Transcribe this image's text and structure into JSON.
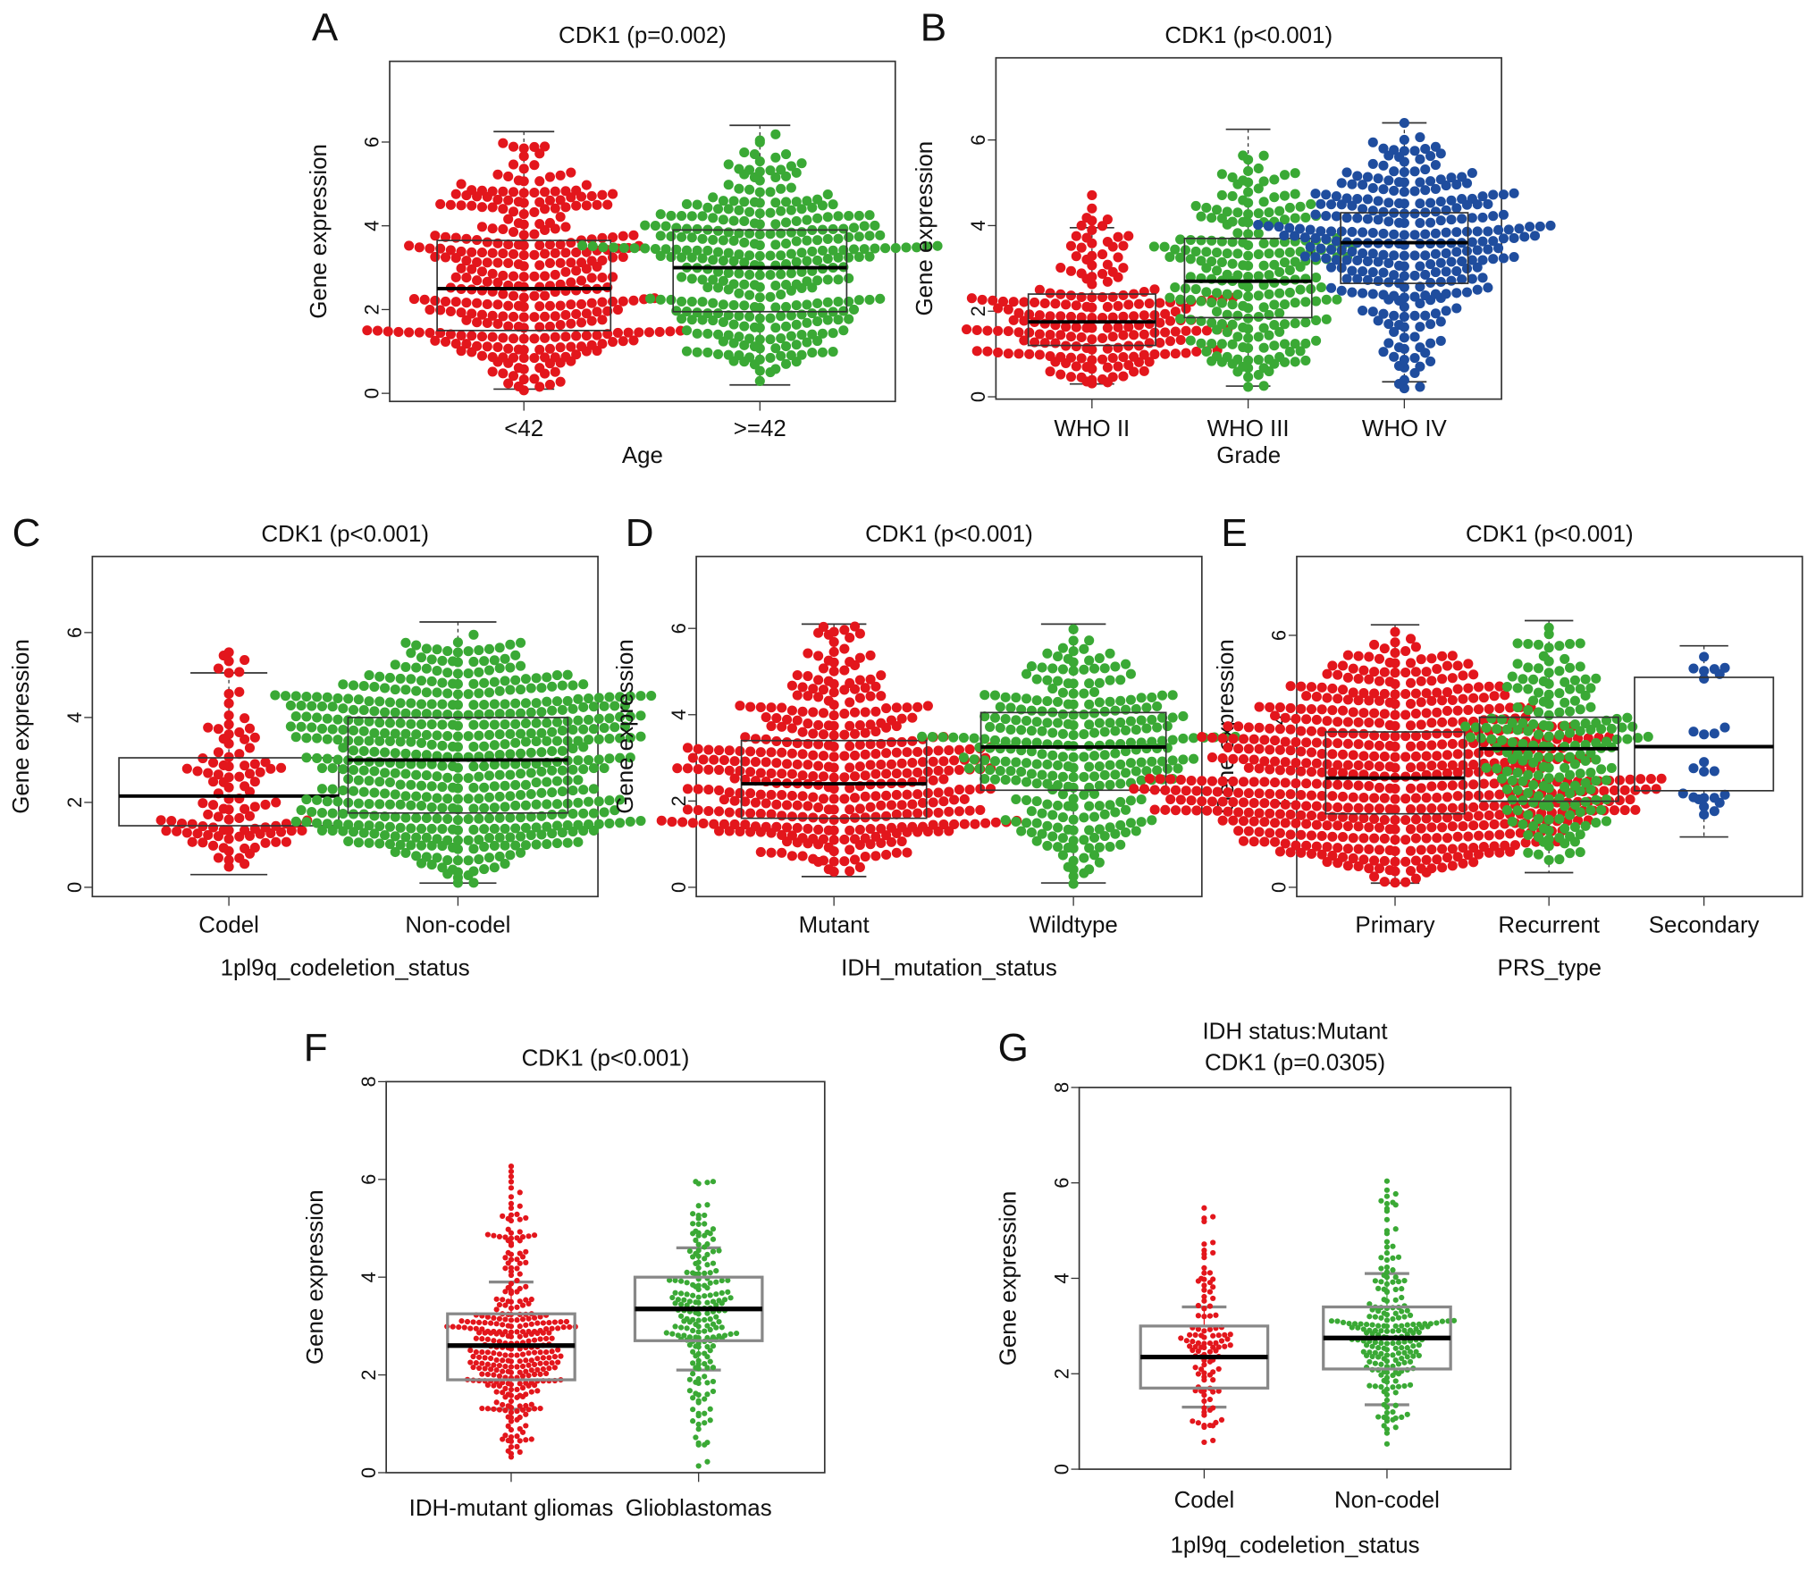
{
  "chart_data": [
    {
      "letter": "A",
      "type": "box+swarm",
      "title": [
        "CDK1 (p=0.002)"
      ],
      "xlabel": "Age",
      "ylabel": "Gene expression",
      "ylim": [
        0,
        8
      ],
      "yticks": [
        0,
        2,
        4,
        6
      ],
      "groups": [
        {
          "name": "<42",
          "color": "#e3161c",
          "min": 0.1,
          "q1": 1.5,
          "median": 2.5,
          "q3": 3.65,
          "max": 6.25,
          "range": [
            0.05,
            6.3
          ]
        },
        {
          "name": ">=42",
          "color": "#3aa935",
          "min": 0.2,
          "q1": 1.95,
          "median": 3.0,
          "q3": 3.9,
          "max": 6.4,
          "range": [
            0.15,
            6.4
          ]
        }
      ]
    },
    {
      "letter": "B",
      "type": "box+swarm",
      "title": [
        "CDK1 (p<0.001)"
      ],
      "xlabel": "Grade",
      "ylabel": "Gene expression",
      "ylim": [
        0,
        8
      ],
      "yticks": [
        0,
        2,
        4,
        6
      ],
      "groups": [
        {
          "name": "WHO II",
          "color": "#e3161c",
          "min": 0.3,
          "q1": 1.2,
          "median": 1.75,
          "q3": 2.4,
          "max": 3.95,
          "range": [
            0.25,
            5.05
          ]
        },
        {
          "name": "WHO III",
          "color": "#3aa935",
          "min": 0.25,
          "q1": 1.85,
          "median": 2.7,
          "q3": 3.7,
          "max": 6.25,
          "range": [
            0.2,
            6.25
          ]
        },
        {
          "name": "WHO IV",
          "color": "#1f4d9e",
          "min": 0.35,
          "q1": 2.65,
          "median": 3.6,
          "q3": 4.3,
          "max": 6.4,
          "range": [
            0.0,
            6.4
          ]
        }
      ]
    },
    {
      "letter": "C",
      "type": "box+swarm",
      "title": [
        "CDK1 (p<0.001)"
      ],
      "xlabel": "1pl9q_codeletion_status",
      "ylabel": "Gene expression",
      "ylim": [
        0,
        8
      ],
      "yticks": [
        0,
        2,
        4,
        6
      ],
      "groups": [
        {
          "name": "Codel",
          "color": "#e3161c",
          "min": 0.3,
          "q1": 1.45,
          "median": 2.15,
          "q3": 3.05,
          "max": 5.05,
          "range": [
            0.25,
            6.4
          ]
        },
        {
          "name": "Non-codel",
          "color": "#3aa935",
          "min": 0.1,
          "q1": 1.75,
          "median": 3.0,
          "q3": 4.0,
          "max": 6.25,
          "range": [
            0.05,
            6.25
          ]
        }
      ]
    },
    {
      "letter": "D",
      "type": "box+swarm",
      "title": [
        "CDK1 (p<0.001)"
      ],
      "xlabel": "IDH_mutation_status",
      "ylabel": "Gene expression",
      "ylim": [
        0,
        8
      ],
      "yticks": [
        0,
        2,
        4,
        6
      ],
      "groups": [
        {
          "name": "Mutant",
          "color": "#e3161c",
          "min": 0.25,
          "q1": 1.6,
          "median": 2.4,
          "q3": 3.4,
          "max": 6.1,
          "range": [
            0.2,
            6.4
          ]
        },
        {
          "name": "Wildtype",
          "color": "#3aa935",
          "min": 0.1,
          "q1": 2.25,
          "median": 3.25,
          "q3": 4.05,
          "max": 6.1,
          "range": [
            0.05,
            6.1
          ]
        }
      ]
    },
    {
      "letter": "E",
      "type": "box+swarm",
      "title": [
        "CDK1 (p<0.001)"
      ],
      "xlabel": "PRS_type",
      "ylabel": "Gene expression",
      "ylim": [
        0,
        8
      ],
      "yticks": [
        0,
        2,
        4,
        6
      ],
      "groups": [
        {
          "name": "Primary",
          "color": "#e3161c",
          "min": 0.1,
          "q1": 1.75,
          "median": 2.6,
          "q3": 3.7,
          "max": 6.25,
          "range": [
            0.05,
            6.25
          ]
        },
        {
          "name": "Recurrent",
          "color": "#3aa935",
          "min": 0.35,
          "q1": 2.05,
          "median": 3.3,
          "q3": 4.05,
          "max": 6.35,
          "range": [
            0.3,
            6.35
          ]
        },
        {
          "name": "Secondary",
          "color": "#1f4d9e",
          "min": 1.2,
          "q1": 2.3,
          "median": 3.35,
          "q3": 5.0,
          "max": 5.75,
          "range": [
            1.2,
            5.75
          ]
        }
      ]
    },
    {
      "letter": "F",
      "type": "box+swarm",
      "title": [
        "CDK1 (p<0.001)"
      ],
      "xlabel": "",
      "ylabel": "Gene expression",
      "ylim": [
        0,
        8
      ],
      "yticks": [
        0,
        2,
        4,
        6,
        8
      ],
      "groups": [
        {
          "name": "IDH-mutant gliomas",
          "color": "#e3161c",
          "min": 1.3,
          "q1": 1.9,
          "median": 2.6,
          "q3": 3.25,
          "max": 3.9,
          "range": [
            0.2,
            6.4
          ]
        },
        {
          "name": "Glioblastomas",
          "color": "#3aa935",
          "min": 2.1,
          "q1": 2.7,
          "median": 3.35,
          "q3": 4.0,
          "max": 4.6,
          "range": [
            0.0,
            6.1
          ]
        }
      ]
    },
    {
      "letter": "G",
      "type": "box+swarm",
      "title": [
        "IDH status:Mutant",
        "CDK1 (p=0.0305)"
      ],
      "xlabel": "1pl9q_codeletion_status",
      "ylabel": "Gene expression",
      "ylim": [
        0,
        8
      ],
      "yticks": [
        0,
        2,
        4,
        6,
        8
      ],
      "groups": [
        {
          "name": "Codel",
          "color": "#e3161c",
          "min": 1.3,
          "q1": 1.7,
          "median": 2.35,
          "q3": 3.0,
          "max": 3.4,
          "range": [
            0.3,
            6.4
          ]
        },
        {
          "name": "Non-codel",
          "color": "#3aa935",
          "min": 1.35,
          "q1": 2.1,
          "median": 2.75,
          "q3": 3.4,
          "max": 4.1,
          "range": [
            0.25,
            6.25
          ]
        }
      ]
    }
  ]
}
